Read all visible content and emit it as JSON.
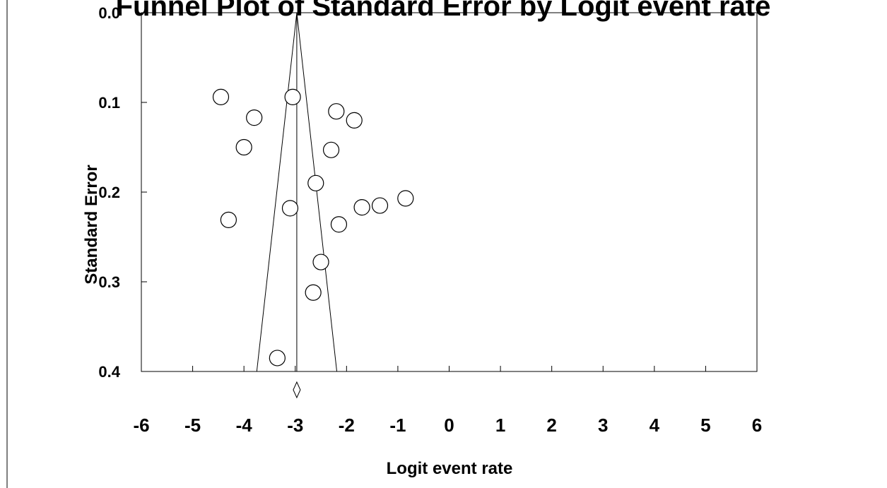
{
  "chart_data": {
    "type": "scatter",
    "title": "Funnel Plot of Standard Error by Logit event rate",
    "xlabel": "Logit event rate",
    "ylabel": "Standard Error",
    "xlim": [
      -6,
      6
    ],
    "ylim": [
      0,
      0.4
    ],
    "y_inverted": true,
    "x_ticks": [
      "-6",
      "-5",
      "-4",
      "-3",
      "-2",
      "-1",
      "0",
      "1",
      "2",
      "3",
      "4",
      "5",
      "6"
    ],
    "y_ticks": [
      "0.0",
      "0.1",
      "0.2",
      "0.3",
      "0.4"
    ],
    "grid": false,
    "marker": "open-circle",
    "points": [
      {
        "x": -4.45,
        "y": 0.094
      },
      {
        "x": -3.05,
        "y": 0.094
      },
      {
        "x": -2.2,
        "y": 0.11
      },
      {
        "x": -1.85,
        "y": 0.12
      },
      {
        "x": -3.8,
        "y": 0.117
      },
      {
        "x": -4.0,
        "y": 0.15
      },
      {
        "x": -2.3,
        "y": 0.153
      },
      {
        "x": -2.6,
        "y": 0.19
      },
      {
        "x": -0.85,
        "y": 0.207
      },
      {
        "x": -1.35,
        "y": 0.215
      },
      {
        "x": -1.7,
        "y": 0.217
      },
      {
        "x": -3.1,
        "y": 0.218
      },
      {
        "x": -4.3,
        "y": 0.231
      },
      {
        "x": -2.15,
        "y": 0.236
      },
      {
        "x": -2.5,
        "y": 0.278
      },
      {
        "x": -2.65,
        "y": 0.312
      },
      {
        "x": -3.35,
        "y": 0.385
      }
    ],
    "pooled_estimate": -2.97,
    "funnel_ci_bottom": [
      -3.75,
      -2.19
    ]
  }
}
